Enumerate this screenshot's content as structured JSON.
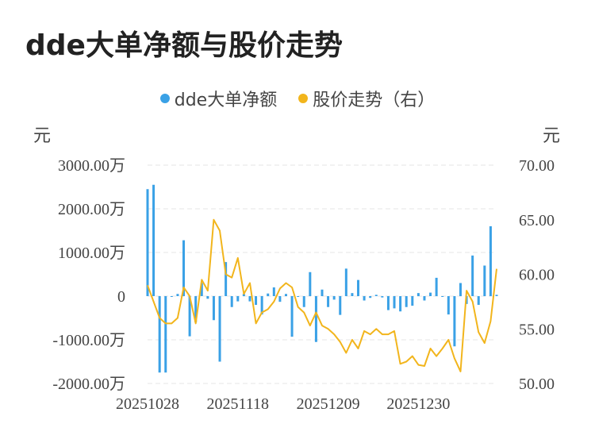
{
  "title": "dde大单净额与股价走势",
  "legend": [
    {
      "label": "dde大单净额",
      "color": "#3aa1e6"
    },
    {
      "label": "股价走势（右）",
      "color": "#f2b51c"
    }
  ],
  "axes": {
    "left_unit": "元",
    "right_unit": "元",
    "left_ticks": [
      "3000.00万",
      "2000.00万",
      "1000.00万",
      "0",
      "-1000.00万",
      "-2000.00万"
    ],
    "right_ticks": [
      "70.00",
      "65.00",
      "60.00",
      "55.00",
      "50.00"
    ],
    "x_ticks": [
      "20251028",
      "20251118",
      "20251209",
      "20251230"
    ]
  },
  "chart_data": {
    "type": "bar+line",
    "title": "dde大单净额与股价走势",
    "categories_count": 59,
    "x_tick_labels": [
      {
        "index": 0,
        "label": "20251028"
      },
      {
        "index": 15,
        "label": "20251118"
      },
      {
        "index": 30,
        "label": "20251209"
      },
      {
        "index": 45,
        "label": "20251230"
      }
    ],
    "series": [
      {
        "name": "dde大单净额",
        "type": "bar",
        "axis": "left",
        "unit": "万",
        "ylim": [
          -2000,
          3000
        ],
        "values": [
          2450,
          2550,
          -1750,
          -1750,
          -10,
          50,
          1280,
          -920,
          -600,
          300,
          -60,
          -550,
          -1500,
          780,
          -250,
          -120,
          50,
          -120,
          -200,
          -420,
          60,
          200,
          -130,
          50,
          -930,
          0,
          -250,
          550,
          -1050,
          150,
          -250,
          -80,
          -430,
          630,
          70,
          370,
          -100,
          -40,
          30,
          -30,
          -320,
          -280,
          -350,
          -250,
          -220,
          70,
          -100,
          80,
          420,
          0,
          -420,
          -1150,
          300,
          -180,
          930,
          -200,
          700,
          1600,
          30
        ]
      },
      {
        "name": "股价走势（右）",
        "type": "line",
        "axis": "right",
        "ylim": [
          50,
          70
        ],
        "values": [
          59.0,
          57.5,
          56.0,
          55.5,
          55.5,
          56.0,
          58.8,
          58.0,
          55.5,
          59.5,
          58.5,
          65.0,
          64.0,
          60.0,
          59.7,
          61.5,
          58.2,
          59.2,
          55.5,
          56.5,
          56.8,
          57.5,
          58.7,
          59.2,
          58.8,
          57.0,
          56.5,
          55.3,
          56.5,
          55.3,
          55.0,
          54.5,
          53.8,
          52.8,
          54.0,
          53.2,
          54.8,
          54.5,
          55.0,
          54.5,
          54.5,
          54.8,
          51.8,
          52.0,
          52.5,
          51.7,
          51.6,
          53.2,
          52.5,
          53.2,
          54.0,
          52.3,
          51.1,
          58.5,
          57.5,
          54.7,
          53.7,
          55.7,
          60.5
        ]
      }
    ]
  }
}
